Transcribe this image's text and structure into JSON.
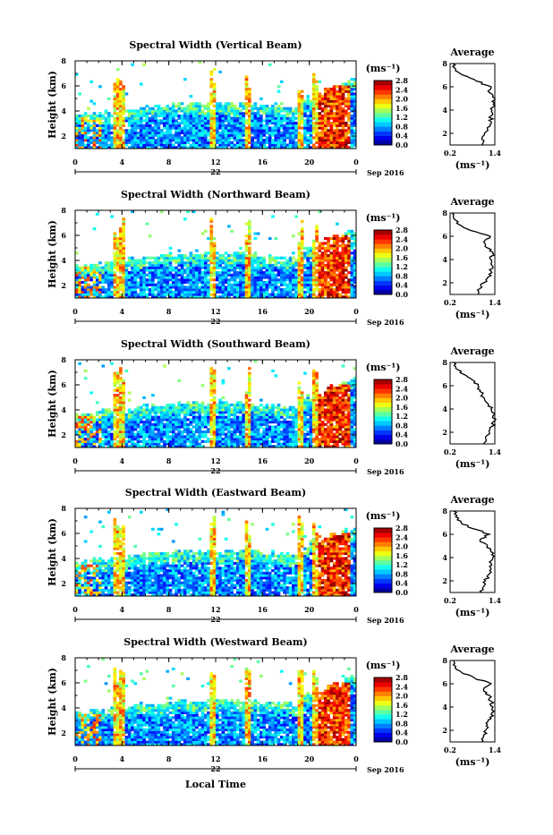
{
  "figure": {
    "x_axis_label": "Local Time",
    "x_tick_labels": [
      "0",
      "4",
      "8",
      "12",
      "16",
      "20",
      "0"
    ],
    "day_label": "22",
    "date_label": "Sep 2016",
    "y_axis_label": "Height (km)",
    "y_tick_labels": [
      "2",
      "4",
      "6",
      "8"
    ],
    "colorbar_unit": "(ms⁻¹)",
    "colorbar_ticks": [
      "0.0",
      "0.4",
      "0.8",
      "1.2",
      "1.6",
      "2.0",
      "2.4",
      "2.8"
    ],
    "average_title": "Average",
    "average_x_ticks": [
      "0.2",
      "1.4"
    ],
    "average_x_unit": "(ms⁻¹)",
    "average_y_ticks": [
      "2",
      "4",
      "6",
      "8"
    ]
  },
  "chart_data": [
    {
      "type": "heatmap",
      "title": "Spectral Width (Vertical Beam)",
      "xlabel": "",
      "ylabel": "Height (km)",
      "xlim": [
        0,
        24
      ],
      "ylim": [
        1,
        8
      ],
      "zlim": [
        0,
        2.8
      ],
      "colorscale": "jet",
      "average_profile": {
        "title": "Average",
        "height_km": [
          1,
          1.5,
          2,
          2.5,
          3,
          3.5,
          4,
          4.5,
          5,
          5.5,
          6,
          6.5,
          7,
          7.5,
          8
        ],
        "value": [
          1.05,
          1.05,
          1.12,
          1.2,
          1.3,
          1.3,
          1.32,
          1.36,
          1.4,
          1.25,
          1.3,
          0.9,
          0.55,
          0.35,
          0.28
        ],
        "xlim": [
          0.2,
          1.4
        ]
      }
    },
    {
      "type": "heatmap",
      "title": "Spectral Width (Northward Beam)",
      "xlabel": "",
      "ylabel": "Height (km)",
      "xlim": [
        0,
        24
      ],
      "ylim": [
        1,
        8
      ],
      "zlim": [
        0,
        2.8
      ],
      "colorscale": "jet",
      "average_profile": {
        "title": "Average",
        "height_km": [
          1,
          1.5,
          2,
          2.5,
          3,
          3.5,
          4,
          4.5,
          5,
          5.5,
          6,
          6.5,
          7,
          7.5,
          8
        ],
        "value": [
          0.95,
          1.0,
          1.1,
          1.22,
          1.3,
          1.32,
          1.3,
          1.35,
          1.2,
          1.1,
          1.28,
          0.75,
          0.45,
          0.3,
          0.25
        ],
        "xlim": [
          0.2,
          1.4
        ]
      }
    },
    {
      "type": "heatmap",
      "title": "Spectral Width (Southward Beam)",
      "xlabel": "",
      "ylabel": "Height (km)",
      "xlim": [
        0,
        24
      ],
      "ylim": [
        1,
        8
      ],
      "zlim": [
        0,
        2.8
      ],
      "colorscale": "jet",
      "average_profile": {
        "title": "Average",
        "height_km": [
          1,
          1.5,
          2,
          2.5,
          3,
          3.5,
          4,
          4.5,
          5,
          5.5,
          6,
          6.5,
          7,
          7.5,
          8
        ],
        "value": [
          1.1,
          1.15,
          1.25,
          1.32,
          1.4,
          1.38,
          1.3,
          1.2,
          1.1,
          1.0,
          0.95,
          0.8,
          0.55,
          0.35,
          0.3
        ],
        "xlim": [
          0.2,
          1.4
        ]
      }
    },
    {
      "type": "heatmap",
      "title": "Spectral Width (Eastward Beam)",
      "xlabel": "",
      "ylabel": "Height (km)",
      "xlim": [
        0,
        24
      ],
      "ylim": [
        1,
        8
      ],
      "zlim": [
        0,
        2.8
      ],
      "colorscale": "jet",
      "average_profile": {
        "title": "Average",
        "height_km": [
          1,
          1.5,
          2,
          2.5,
          3,
          3.5,
          4,
          4.5,
          5,
          5.5,
          6,
          6.5,
          7,
          7.5,
          8
        ],
        "value": [
          1.05,
          1.1,
          1.15,
          1.22,
          1.3,
          1.3,
          1.35,
          1.3,
          1.2,
          1.0,
          1.25,
          0.8,
          0.5,
          0.35,
          0.3
        ],
        "xlim": [
          0.2,
          1.4
        ]
      }
    },
    {
      "type": "heatmap",
      "title": "Spectral Width (Westward Beam)",
      "xlabel": "Local Time",
      "ylabel": "Height (km)",
      "xlim": [
        0,
        24
      ],
      "ylim": [
        1,
        8
      ],
      "zlim": [
        0,
        2.8
      ],
      "colorscale": "jet",
      "average_profile": {
        "title": "Average",
        "height_km": [
          1,
          1.5,
          2,
          2.5,
          3,
          3.5,
          4,
          4.5,
          5,
          5.5,
          6,
          6.5,
          7,
          7.5,
          8
        ],
        "value": [
          1.05,
          1.1,
          1.15,
          1.2,
          1.3,
          1.32,
          1.35,
          1.3,
          1.25,
          1.1,
          1.3,
          0.85,
          0.5,
          0.35,
          0.3
        ],
        "xlim": [
          0.2,
          1.4
        ]
      }
    }
  ]
}
